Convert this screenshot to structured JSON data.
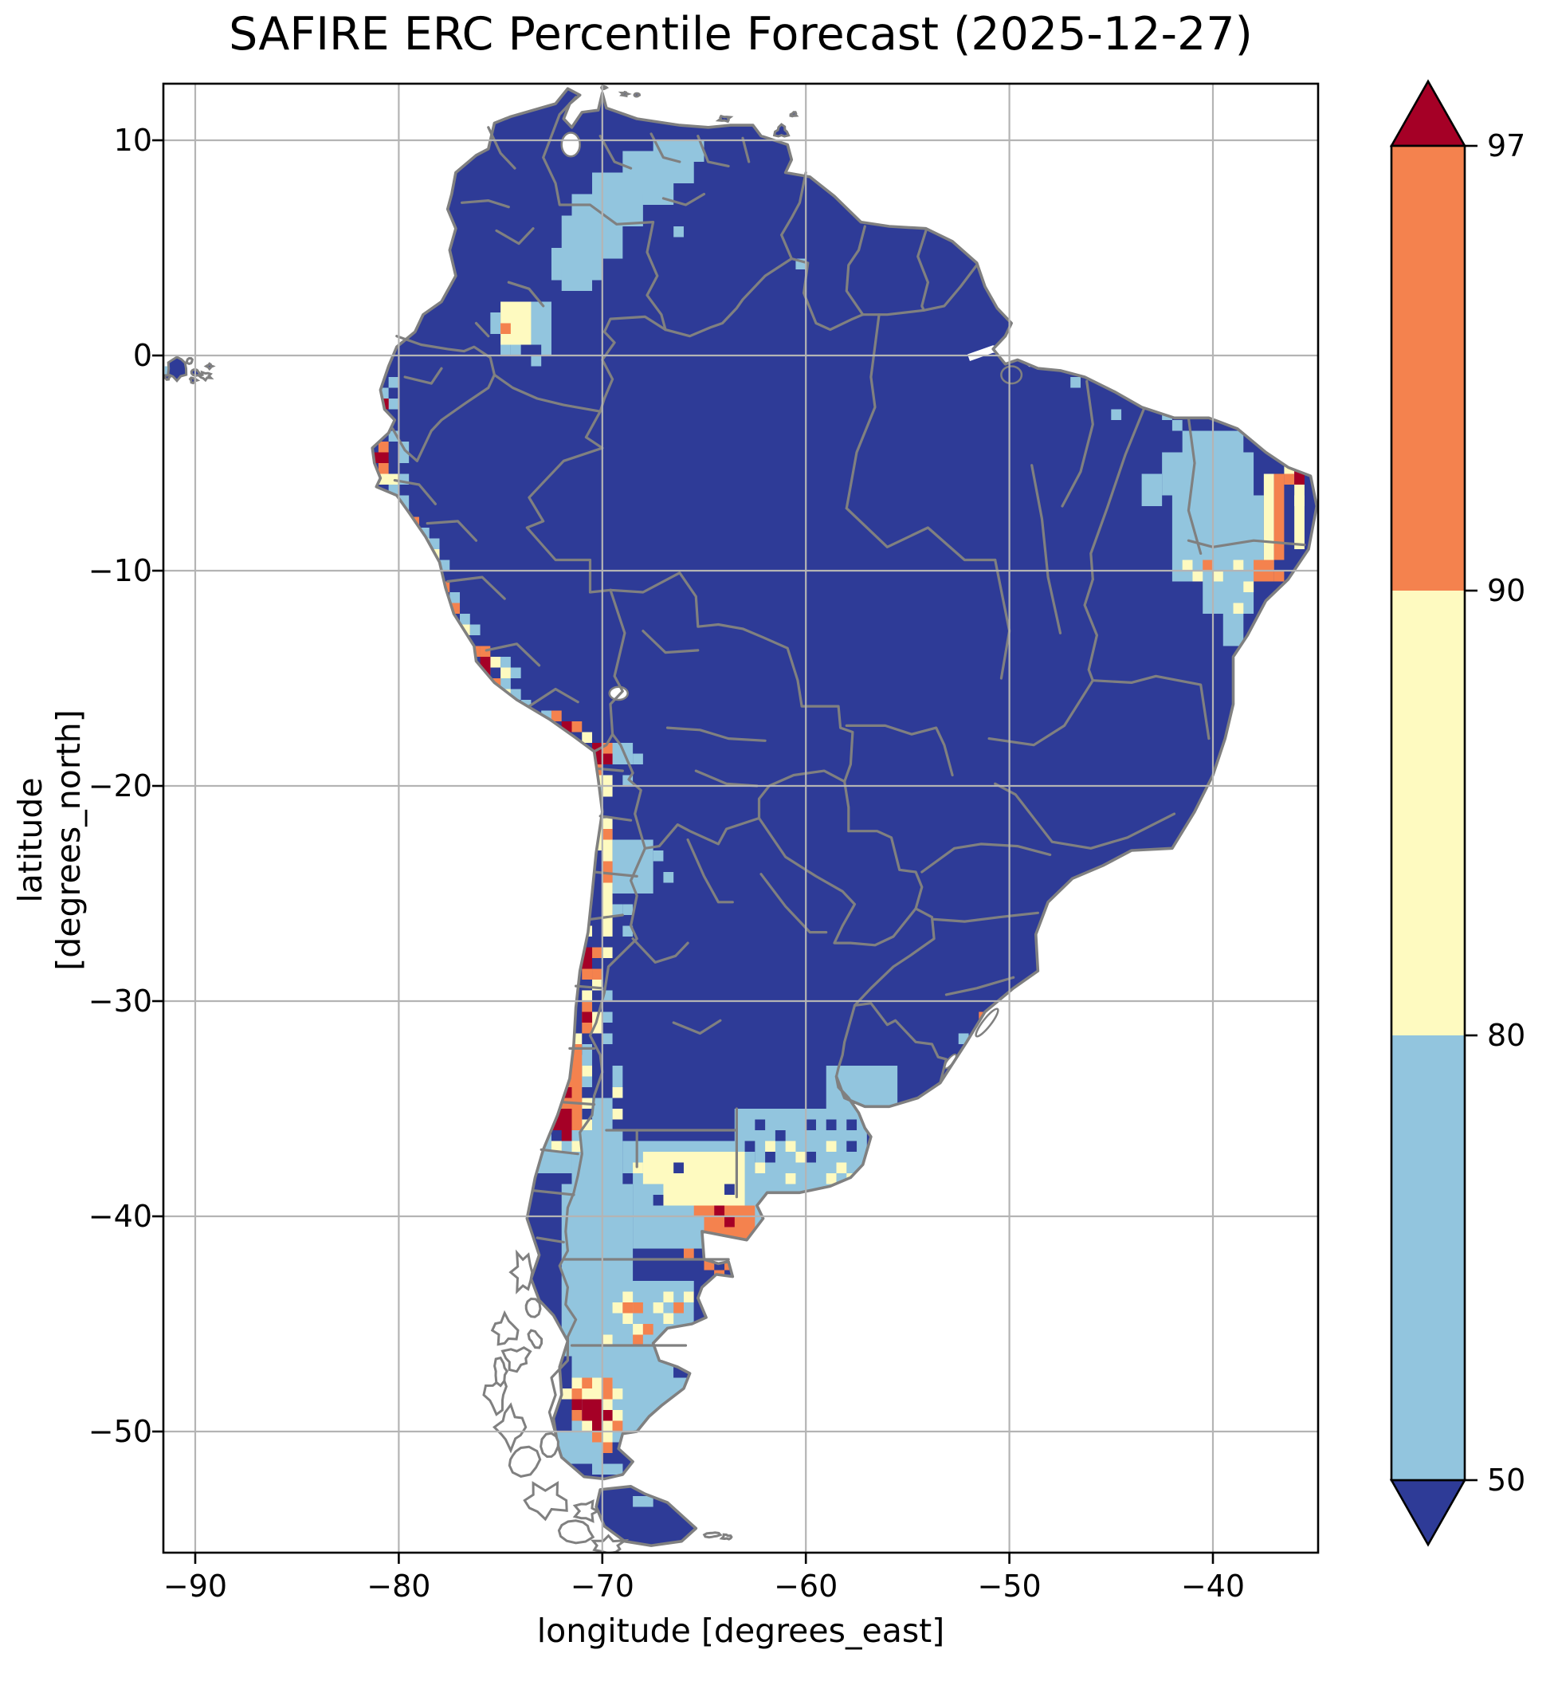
{
  "figure": {
    "title": "SAFIRE ERC Percentile Forecast (2025-12-27)",
    "date": "2025-12-27",
    "product": "SAFIRE ERC Percentile Forecast"
  },
  "axes": {
    "xlabel": "longitude [degrees_east]",
    "ylabel": "latitude [degrees_north]",
    "x_ticks": [
      {
        "value": -90,
        "label": "−90"
      },
      {
        "value": -80,
        "label": "−80"
      },
      {
        "value": -70,
        "label": "−70"
      },
      {
        "value": -60,
        "label": "−60"
      },
      {
        "value": -50,
        "label": "−50"
      },
      {
        "value": -40,
        "label": "−40"
      }
    ],
    "y_ticks": [
      {
        "value": 10,
        "label": "10"
      },
      {
        "value": 0,
        "label": "0"
      },
      {
        "value": -10,
        "label": "−10"
      },
      {
        "value": -20,
        "label": "−20"
      },
      {
        "value": -30,
        "label": "−30"
      },
      {
        "value": -40,
        "label": "−40"
      },
      {
        "value": -50,
        "label": "−50"
      }
    ],
    "grid": true
  },
  "colorbar": {
    "orientation": "vertical",
    "extend": "both",
    "tick_labels": [
      "97",
      "90",
      "80",
      "50"
    ],
    "levels": [
      50,
      80,
      90,
      97
    ]
  },
  "colors": {
    "dark_blue": "#2E3B97",
    "light_blue": "#92C5DE",
    "yellow": "#FEFAC0",
    "orange": "#F4824E",
    "dark_red": "#A50026",
    "border_gray": "#808080",
    "grid_gray": "#B4B4B4",
    "frame_black": "#000000",
    "ocean_white": "#FFFFFF"
  },
  "chart_data": {
    "type": "heatmap",
    "subtype": "geographic percentile map of South America, 0.5-degree cells",
    "title": "SAFIRE ERC Percentile Forecast (2025-12-27)",
    "xlabel": "longitude [degrees_east]",
    "ylabel": "latitude [degrees_north]",
    "xlim": [
      -91.6,
      -34.8
    ],
    "ylim": [
      -55.6,
      12.6
    ],
    "legend_position": "right colorbar",
    "classes": [
      {
        "range": "< 50",
        "color": "#2E3B97"
      },
      {
        "range": "50–80",
        "color": "#92C5DE"
      },
      {
        "range": "80–90",
        "color": "#FEFAC0"
      },
      {
        "range": "90–97",
        "color": "#F4824E"
      },
      {
        "range": "> 97",
        "color": "#A50026"
      }
    ],
    "background_class": "< 50 (dark blue) over most of the continent",
    "hotspots": [
      {
        "region": "Venezuelan llanos into eastern Colombia",
        "class": "50–80 band"
      },
      {
        "region": "Southern Colombia (Meta/Guaviare)",
        "class": "80–90 patch with one 90–97 cell"
      },
      {
        "region": "Guayas coast, Ecuador",
        "class": "mixed 50–97 specks"
      },
      {
        "region": "Piura/Talara coast, northern Peru",
        "class": "90–97 cluster with >97 core"
      },
      {
        "region": "Central Peru coast chain (Trujillo–Lima)",
        "class": "scattered 50–97 cells"
      },
      {
        "region": "Ica/Nazca, Peru",
        "class": "90–97 cluster with >97 cells"
      },
      {
        "region": "Arica–Tacna corner",
        "class": ">97 core with 50–90 halo"
      },
      {
        "region": "North Chile interior strip (Tarapacá–Antofagasta)",
        "class": "80–90 strip, 90–97 patches, 50–80 inland bulge"
      },
      {
        "region": "Atacama coast (Copiapó–Vallenar)",
        "class": ">97 cells in 80–97 strip"
      },
      {
        "region": "Central Chile (Valparaíso–Maule)",
        "class": "90–97 column with >97 cores"
      },
      {
        "region": "Northeast Brazil interior (Ceará–Bahia)",
        "class": "50–90 area with 90–97 band and >97 cell near Rio Grande do Norte"
      },
      {
        "region": "Pampas / Buenos Aires province",
        "class": "50–80 with 80–90 speckles"
      },
      {
        "region": "Río Negro lower valley (≈63°W, 40°S)",
        "class": "90–97 cluster with >97 cells"
      },
      {
        "region": "Península Valdés",
        "class": "90–97 cells"
      },
      {
        "region": "Patagonia steppe (Neuquén–Santa Cruz)",
        "class": "broad 50–80 area"
      },
      {
        "region": "Chubut interior",
        "class": "80–97 speckles"
      },
      {
        "region": "SW Santa Cruz (≈70.5°W, 49°S)",
        "class": ">97 cluster ringed by 90–97"
      },
      {
        "region": "South-central Uruguay",
        "class": "50–80 patch"
      },
      {
        "region": "Rio Grande do Sul coast near Lagoa dos Patos",
        "class": "90–97 cells"
      },
      {
        "region": "Galápagos Islands",
        "class": "<50 with one 50–80 cell"
      },
      {
        "region": "Tierra del Fuego (Argentine side)",
        "class": "<50 with few 50–80 cells"
      }
    ]
  }
}
